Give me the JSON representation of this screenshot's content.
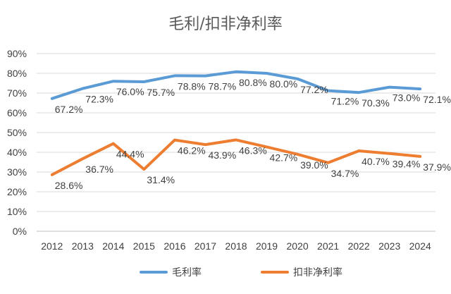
{
  "chart_data": {
    "type": "line",
    "title": "毛利/扣非净利率",
    "x": [
      "2012",
      "2013",
      "2014",
      "2015",
      "2016",
      "2017",
      "2018",
      "2019",
      "2020",
      "2021",
      "2022",
      "2023",
      "2024"
    ],
    "ylim": [
      0,
      90
    ],
    "yticks": [
      "0%",
      "10%",
      "20%",
      "30%",
      "40%",
      "50%",
      "60%",
      "70%",
      "80%",
      "90%"
    ],
    "grid": true,
    "legend_position": "bottom",
    "series": [
      {
        "name": "毛利率",
        "color": "#5B9BD5",
        "values": [
          67.2,
          72.3,
          76.0,
          75.7,
          78.8,
          78.7,
          80.8,
          80.0,
          77.2,
          71.2,
          70.3,
          73.0,
          72.1
        ],
        "labels": [
          "67.2%",
          "72.3%",
          "76.0%",
          "75.7%",
          "78.8%",
          "78.7%",
          "80.8%",
          "80.0%",
          "77.2%",
          "71.2%",
          "70.3%",
          "73.0%",
          "72.1%"
        ]
      },
      {
        "name": "扣非净利率",
        "color": "#ED7D31",
        "values": [
          28.6,
          36.7,
          44.4,
          31.4,
          46.2,
          43.9,
          46.3,
          42.7,
          39.0,
          34.7,
          40.7,
          39.4,
          37.9
        ],
        "labels": [
          "28.6%",
          "36.7%",
          "44.4%",
          "31.4%",
          "46.2%",
          "43.9%",
          "46.3%",
          "42.7%",
          "39.0%",
          "34.7%",
          "40.7%",
          "39.4%",
          "37.9%"
        ]
      }
    ]
  }
}
